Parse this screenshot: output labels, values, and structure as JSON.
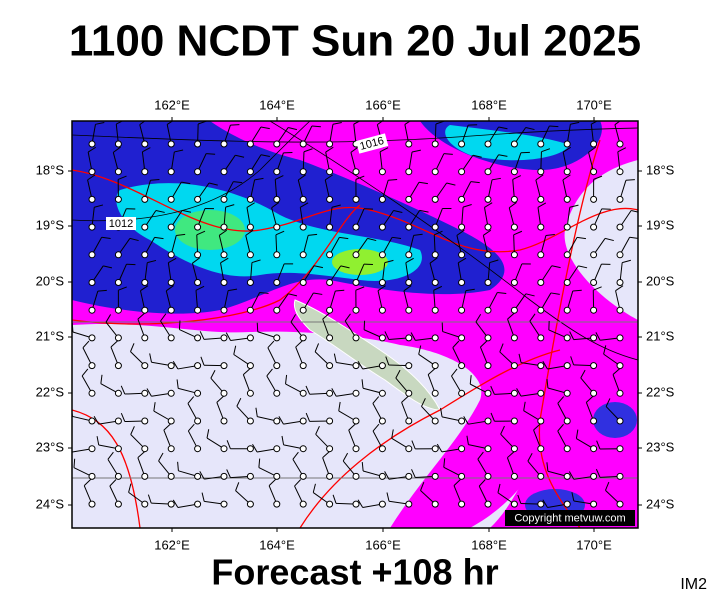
{
  "header": {
    "title": "1100 NCDT Sun 20 Jul 2025"
  },
  "map": {
    "lon_labels": [
      "162°E",
      "164°E",
      "166°E",
      "168°E",
      "170°E"
    ],
    "lat_labels": [
      "18°S",
      "19°S",
      "20°S",
      "21°S",
      "22°S",
      "23°S",
      "24°S"
    ],
    "isobar_labels": [
      "1016",
      "1012"
    ],
    "copyright": "Copyright metvuw.com"
  },
  "footer": {
    "forecast": "Forecast +108 hr",
    "image_id": "IM2"
  }
}
